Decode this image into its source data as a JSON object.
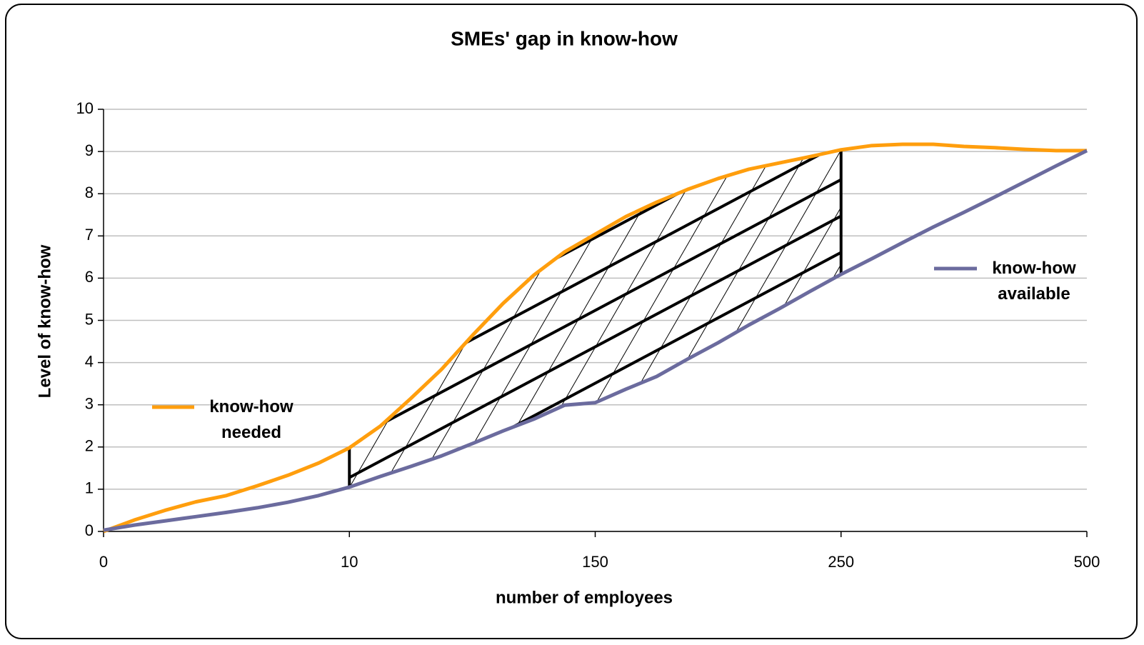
{
  "chart_data": {
    "type": "line",
    "title": "SMEs' gap in know-how",
    "xlabel": "number of employees",
    "ylabel": "Level of know-how",
    "categories": [
      "0",
      null,
      null,
      null,
      null,
      null,
      null,
      null,
      "10",
      null,
      null,
      null,
      null,
      null,
      null,
      null,
      "150",
      null,
      null,
      null,
      null,
      null,
      null,
      null,
      "250",
      null,
      null,
      null,
      null,
      null,
      null,
      null,
      "500"
    ],
    "series": [
      {
        "name": "know-how needed",
        "color": "#ff9e0d",
        "values": [
          0,
          0.27,
          0.5,
          0.7,
          0.85,
          1.08,
          1.33,
          1.62,
          1.98,
          2.49,
          3.15,
          3.84,
          4.64,
          5.4,
          6.07,
          6.62,
          7.04,
          7.46,
          7.8,
          8.1,
          8.36,
          8.58,
          8.73,
          8.88,
          9.04,
          9.14,
          9.17,
          9.17,
          9.12,
          9.09,
          9.05,
          9.02,
          9.02
        ]
      },
      {
        "name": "know-how available",
        "color": "#6b6b9e",
        "values": [
          0.03,
          0.15,
          0.25,
          0.35,
          0.45,
          0.56,
          0.69,
          0.85,
          1.05,
          1.3,
          1.54,
          1.79,
          2.08,
          2.38,
          2.66,
          2.99,
          3.05,
          3.37,
          3.67,
          4.08,
          4.47,
          4.89,
          5.28,
          5.69,
          6.09,
          6.46,
          6.84,
          7.21,
          7.56,
          7.92,
          8.29,
          8.66,
          9.02
        ]
      }
    ],
    "ylim": [
      0,
      10
    ],
    "yticks": [
      0,
      1,
      2,
      3,
      4,
      5,
      6,
      7,
      8,
      9,
      10
    ],
    "grid": true
  }
}
